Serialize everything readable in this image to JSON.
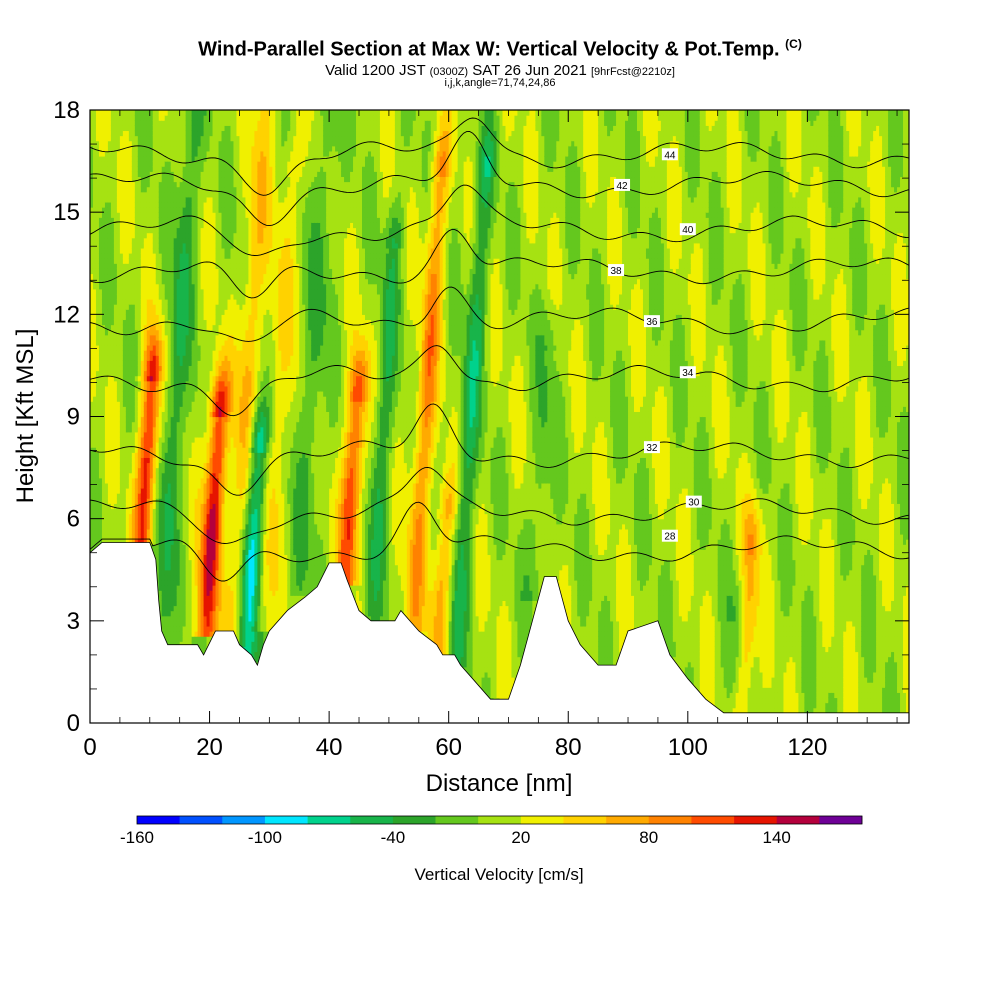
{
  "header": {
    "title": "Wind-Parallel Section at Max W: Vertical Velocity & Pot.Temp.",
    "title_mark": "(C)",
    "valid_prefix": "Valid 1200 JST",
    "valid_utc": "(0300Z)",
    "valid_date": "SAT 26 Jun 2021",
    "forecast": "[9hrFcst@2210z]",
    "params": "i,j,k,angle=71,74,24,86"
  },
  "chart_data": {
    "type": "heatmap",
    "xlabel": "Distance [nm]",
    "ylabel": "Height [Kft MSL]",
    "xlim": [
      0,
      137
    ],
    "ylim": [
      0,
      18
    ],
    "x_ticks": [
      0,
      20,
      40,
      60,
      80,
      100,
      120
    ],
    "y_ticks": [
      0,
      3,
      6,
      9,
      12,
      15,
      18
    ],
    "colorbar": {
      "label": "Vertical Velocity [cm/s]",
      "ticks": [
        "-160",
        "-100",
        "-40",
        "20",
        "80",
        "140"
      ],
      "levels": [
        -160,
        -140,
        -120,
        -100,
        -80,
        -60,
        -40,
        -20,
        0,
        20,
        40,
        60,
        80,
        100,
        120,
        140,
        160
      ],
      "colors": [
        "#0000ff",
        "#0050ff",
        "#0096ff",
        "#00e6ff",
        "#00d28c",
        "#18b44a",
        "#2ca42a",
        "#64c81e",
        "#a6e212",
        "#f0f000",
        "#ffd200",
        "#ffaa00",
        "#ff8200",
        "#ff4b00",
        "#e61400",
        "#b4003c",
        "#6e0096"
      ]
    },
    "updraft_cores": [
      {
        "x": 9,
        "top": 10,
        "peak": 130
      },
      {
        "x": 20.5,
        "top": 9,
        "peak": 150
      },
      {
        "x": 25,
        "top": 18,
        "peak": 60
      },
      {
        "x": 30,
        "top": 16,
        "peak": 40
      },
      {
        "x": 43.5,
        "top": 9.5,
        "peak": 120
      },
      {
        "x": 55,
        "top": 16,
        "peak": 80
      },
      {
        "x": 59.5,
        "top": 6,
        "peak": 70
      },
      {
        "x": 111,
        "top": 5,
        "peak": 70
      }
    ],
    "downdraft_cores": [
      {
        "x": 13,
        "top": 18,
        "peak": -60
      },
      {
        "x": 27.5,
        "top": 8,
        "peak": -110
      },
      {
        "x": 36,
        "top": 18,
        "peak": -40
      },
      {
        "x": 48,
        "top": 14,
        "peak": -50
      },
      {
        "x": 62.5,
        "top": 16,
        "peak": -60
      },
      {
        "x": 75,
        "top": 11,
        "peak": -30
      },
      {
        "x": 109.5,
        "top": 3,
        "peak": -40
      }
    ],
    "terrain": [
      [
        0,
        5.0
      ],
      [
        2,
        5.3
      ],
      [
        10,
        5.3
      ],
      [
        11,
        4.8
      ],
      [
        11.5,
        3.6
      ],
      [
        12,
        2.7
      ],
      [
        13,
        2.3
      ],
      [
        18,
        2.3
      ],
      [
        19,
        2.0
      ],
      [
        21,
        2.7
      ],
      [
        24,
        2.7
      ],
      [
        25,
        2.3
      ],
      [
        27,
        2.0
      ],
      [
        28,
        1.7
      ],
      [
        29,
        2.3
      ],
      [
        30,
        2.7
      ],
      [
        33,
        3.3
      ],
      [
        36,
        3.7
      ],
      [
        38,
        4.0
      ],
      [
        40,
        4.7
      ],
      [
        42,
        4.7
      ],
      [
        43,
        4.2
      ],
      [
        45,
        3.3
      ],
      [
        47,
        3.0
      ],
      [
        51,
        3.0
      ],
      [
        52,
        3.3
      ],
      [
        55,
        2.7
      ],
      [
        58,
        2.3
      ],
      [
        59,
        2.0
      ],
      [
        61,
        2.0
      ],
      [
        62,
        1.7
      ],
      [
        64,
        1.3
      ],
      [
        67,
        0.7
      ],
      [
        70,
        0.7
      ],
      [
        72,
        1.7
      ],
      [
        74,
        3.0
      ],
      [
        76,
        4.3
      ],
      [
        78,
        4.3
      ],
      [
        80,
        3.0
      ],
      [
        82,
        2.3
      ],
      [
        85,
        1.7
      ],
      [
        88,
        1.7
      ],
      [
        90,
        2.7
      ],
      [
        95,
        3.0
      ],
      [
        97,
        2.0
      ],
      [
        100,
        1.3
      ],
      [
        103,
        0.7
      ],
      [
        106,
        0.3
      ],
      [
        137,
        0.3
      ]
    ],
    "theta_contours": [
      {
        "label": "28",
        "base": 5.1,
        "label_x": 97,
        "label_y": 5.5
      },
      {
        "label": "30",
        "base": 6.2,
        "label_x": 101,
        "label_y": 6.5
      },
      {
        "label": "32",
        "base": 7.9,
        "label_x": 94,
        "label_y": 8.1
      },
      {
        "label": "34",
        "base": 10.1,
        "label_x": 100,
        "label_y": 10.3
      },
      {
        "label": "36",
        "base": 11.8,
        "label_x": 94,
        "label_y": 11.8
      },
      {
        "label": "38",
        "base": 13.3,
        "label_x": 88,
        "label_y": 13.3
      },
      {
        "label": "40",
        "base": 14.5,
        "label_x": 100,
        "label_y": 14.5
      },
      {
        "label": "42",
        "base": 15.8,
        "label_x": 89,
        "label_y": 15.8
      },
      {
        "label": "44",
        "base": 16.7,
        "label_x": 97,
        "label_y": 16.7
      }
    ]
  }
}
